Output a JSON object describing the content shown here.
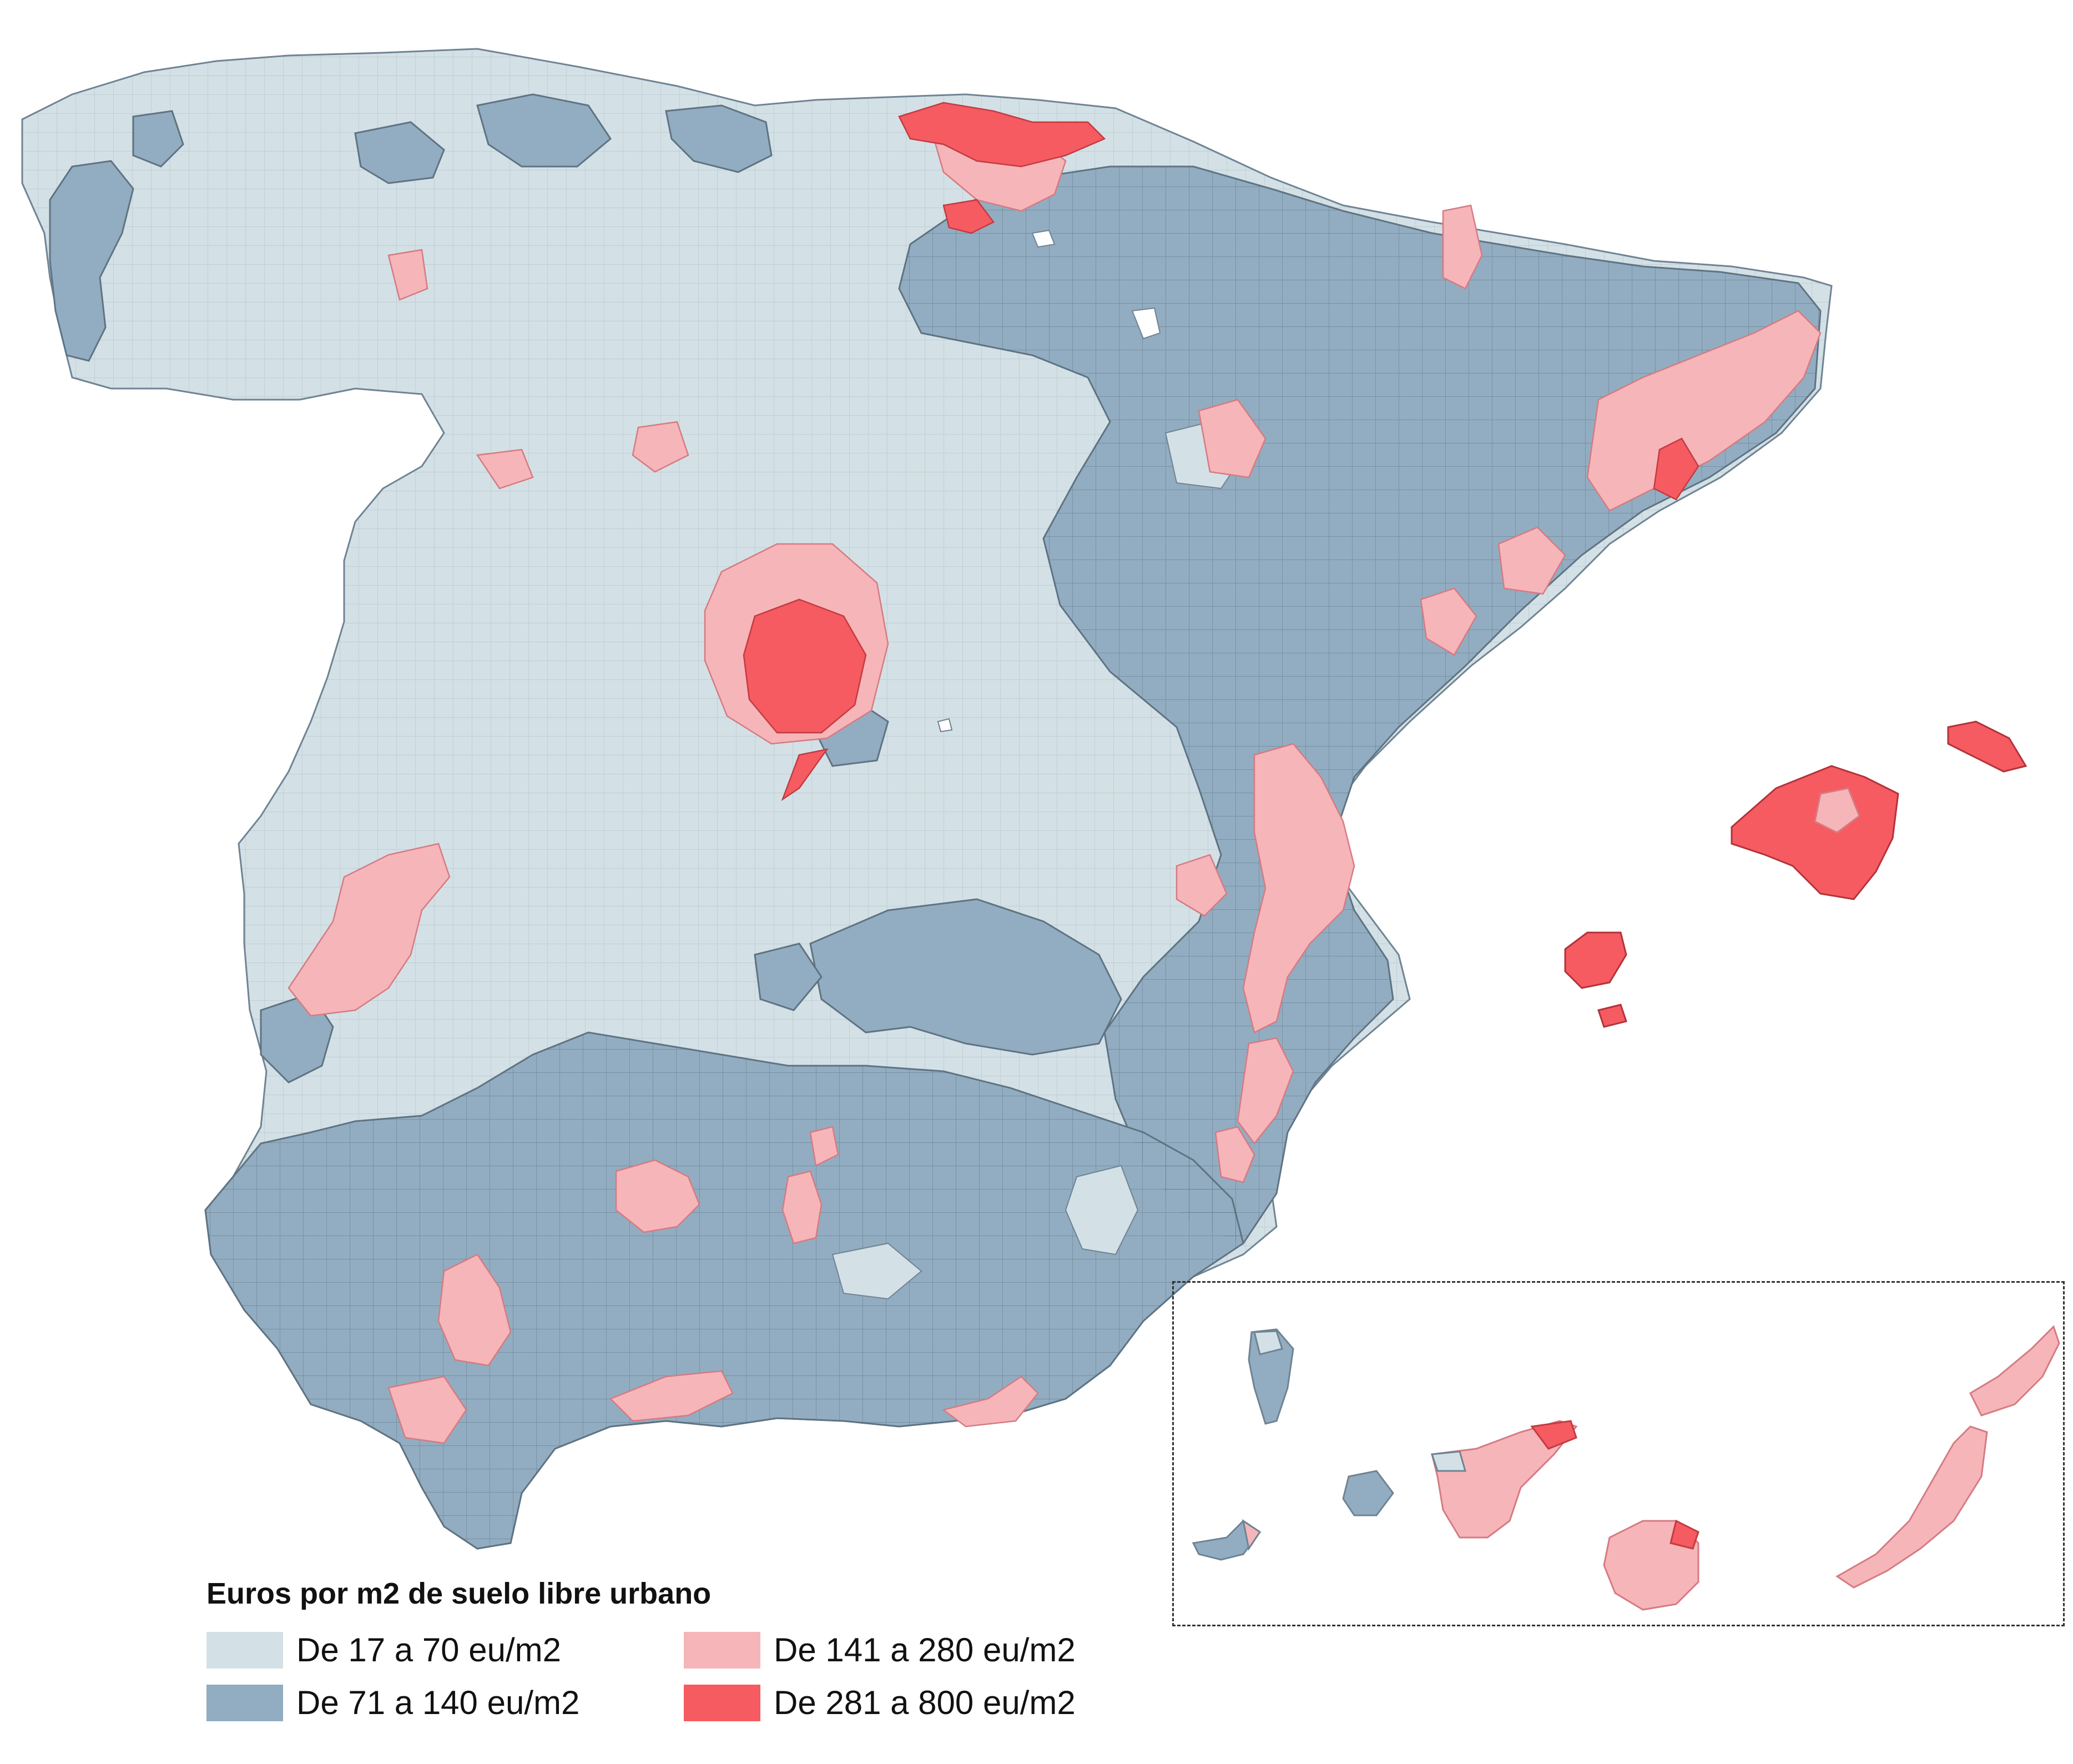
{
  "legend": {
    "title": "Euros por m2 de suelo libre urbano",
    "classes": [
      {
        "label": "De 17 a 70 eu/m2",
        "color": "#d3e1e6"
      },
      {
        "label": "De 71 a 140 eu/m2",
        "color": "#92adc1"
      },
      {
        "label": "De 141 a 280 eu/m2",
        "color": "#f6b5b9"
      },
      {
        "label": "De 281 a 800 eu/m2",
        "color": "#f55b61"
      }
    ]
  },
  "colors": {
    "border": "#6f8393",
    "frame": "#333333",
    "background": "#ffffff"
  }
}
